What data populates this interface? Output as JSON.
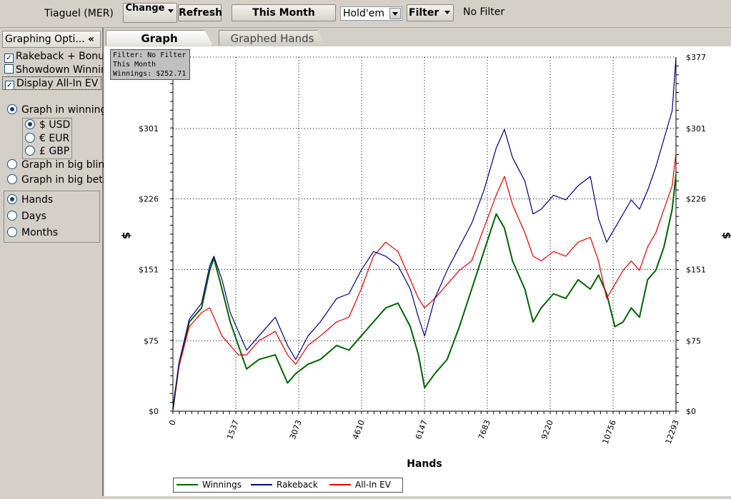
{
  "toolbar": {
    "player": "Tiaguel (MER)",
    "change_label": "Change",
    "refresh_label": "Refresh",
    "period_label": "This Month",
    "game_select": "Hold'em",
    "filter_label": "Filter",
    "filter_status": "No Filter"
  },
  "sidebar": {
    "title": "Graphing Opti...",
    "collapse": "«",
    "checkboxes": [
      {
        "label": "Rakeback + Bonus",
        "checked": true
      },
      {
        "label": "Showdown Winnings",
        "checked": false
      },
      {
        "label": "Display All-In EV",
        "checked": true
      }
    ],
    "graph_mode": [
      {
        "label": "Graph in winnings",
        "selected": true
      },
      {
        "label": "Graph in big blinds",
        "selected": false
      },
      {
        "label": "Graph in big bets",
        "selected": false
      }
    ],
    "currencies": [
      {
        "label": "$ USD",
        "selected": true
      },
      {
        "label": "€ EUR",
        "selected": false
      },
      {
        "label": "£ GBP",
        "selected": false
      }
    ],
    "x_axis_mode": [
      {
        "label": "Hands",
        "selected": true
      },
      {
        "label": "Days",
        "selected": false
      },
      {
        "label": "Months",
        "selected": false
      }
    ]
  },
  "tabs": [
    {
      "label": "Graph",
      "active": true
    },
    {
      "label": "Graphed Hands",
      "active": false
    }
  ],
  "info_box": {
    "line1": "Filter: No Filter",
    "line2": "This Month",
    "line3": "Winnings: $252.71"
  },
  "chart_data": {
    "type": "line",
    "xlabel": "Hands",
    "ylabel": "$",
    "ylabel_right": "$",
    "xlim": [
      0,
      12293
    ],
    "ylim": [
      0,
      377
    ],
    "x_ticks": [
      "0",
      "1537",
      "3073",
      "4610",
      "6147",
      "7683",
      "9220",
      "10756",
      "12293"
    ],
    "y_ticks": [
      "$0",
      "$75",
      "$151",
      "$226",
      "$301",
      "$377"
    ],
    "y_tick_values": [
      0,
      75,
      151,
      226,
      301,
      377
    ],
    "grid": true,
    "legend_position": "bottom-left",
    "series": [
      {
        "name": "Winnings",
        "color": "#006400",
        "x": [
          0,
          150,
          400,
          700,
          900,
          1000,
          1200,
          1400,
          1600,
          1800,
          2100,
          2500,
          2800,
          3000,
          3300,
          3600,
          4000,
          4300,
          4600,
          4900,
          5200,
          5500,
          5800,
          6000,
          6150,
          6400,
          6700,
          7000,
          7300,
          7600,
          7900,
          8100,
          8300,
          8600,
          8800,
          9000,
          9300,
          9600,
          9900,
          10200,
          10400,
          10600,
          10800,
          11000,
          11200,
          11400,
          11600,
          11800,
          12000,
          12200,
          12293
        ],
        "y": [
          2,
          50,
          95,
          110,
          150,
          163,
          130,
          95,
          70,
          45,
          55,
          60,
          30,
          40,
          50,
          55,
          70,
          65,
          80,
          95,
          110,
          115,
          90,
          60,
          25,
          40,
          55,
          90,
          130,
          170,
          210,
          195,
          160,
          130,
          95,
          110,
          125,
          120,
          140,
          130,
          145,
          125,
          90,
          95,
          110,
          100,
          140,
          150,
          175,
          215,
          252
        ]
      },
      {
        "name": "Rakeback",
        "color": "#000080",
        "x": [
          0,
          150,
          400,
          700,
          900,
          1000,
          1200,
          1400,
          1600,
          1800,
          2100,
          2500,
          2800,
          3000,
          3300,
          3600,
          4000,
          4300,
          4600,
          4900,
          5200,
          5500,
          5800,
          6000,
          6150,
          6400,
          6700,
          7000,
          7300,
          7600,
          7900,
          8100,
          8300,
          8600,
          8800,
          9000,
          9300,
          9600,
          9900,
          10200,
          10400,
          10600,
          10800,
          11000,
          11200,
          11400,
          11600,
          11800,
          12000,
          12200,
          12293
        ],
        "y": [
          2,
          52,
          98,
          115,
          155,
          165,
          140,
          105,
          85,
          65,
          80,
          100,
          70,
          55,
          80,
          95,
          120,
          125,
          150,
          170,
          165,
          155,
          130,
          100,
          80,
          120,
          150,
          175,
          200,
          235,
          280,
          300,
          270,
          245,
          210,
          215,
          230,
          225,
          240,
          250,
          205,
          180,
          195,
          210,
          225,
          215,
          235,
          260,
          290,
          320,
          377
        ]
      },
      {
        "name": "All-In EV",
        "color": "#e00000",
        "x": [
          0,
          150,
          400,
          700,
          900,
          1000,
          1200,
          1400,
          1600,
          1800,
          2100,
          2500,
          2800,
          3000,
          3300,
          3600,
          4000,
          4300,
          4600,
          4900,
          5200,
          5500,
          5800,
          6000,
          6150,
          6400,
          6700,
          7000,
          7300,
          7600,
          7900,
          8100,
          8300,
          8600,
          8800,
          9000,
          9300,
          9600,
          9900,
          10200,
          10400,
          10600,
          10800,
          11000,
          11200,
          11400,
          11600,
          11800,
          12000,
          12200,
          12293
        ],
        "y": [
          2,
          48,
          90,
          105,
          110,
          100,
          80,
          70,
          60,
          60,
          75,
          85,
          60,
          50,
          70,
          80,
          95,
          100,
          130,
          165,
          180,
          170,
          140,
          120,
          110,
          120,
          135,
          150,
          160,
          195,
          230,
          250,
          220,
          190,
          165,
          160,
          170,
          165,
          180,
          185,
          160,
          120,
          135,
          150,
          160,
          150,
          175,
          190,
          215,
          240,
          275
        ]
      }
    ]
  }
}
